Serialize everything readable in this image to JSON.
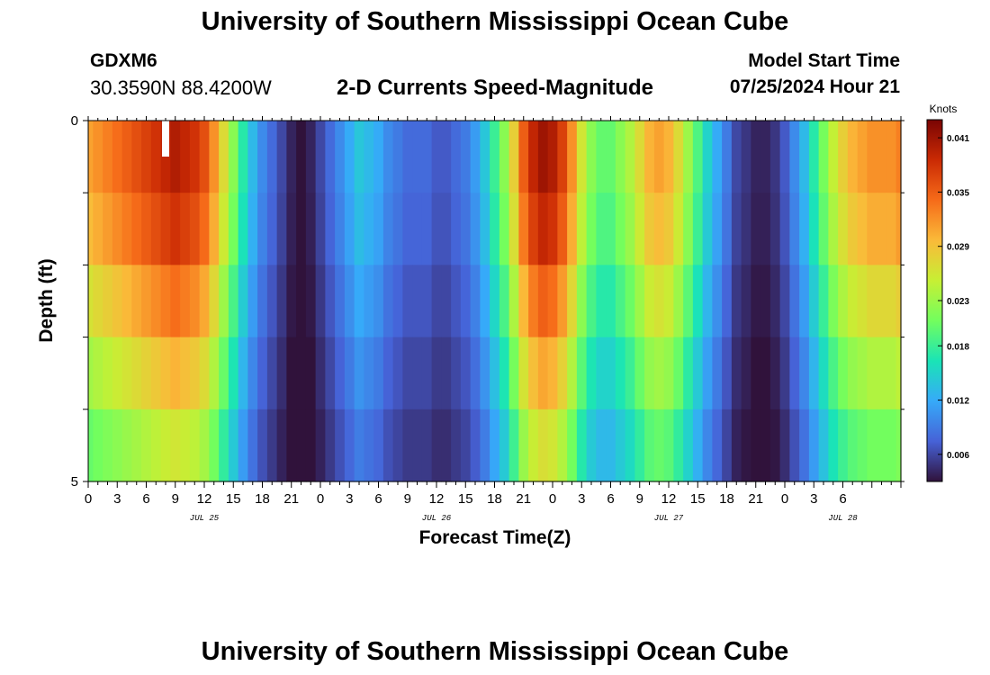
{
  "header": {
    "title": "University of Southern Mississippi Ocean Cube",
    "station_id": "GDXM6",
    "station_coords": "30.3590N  88.4200W",
    "product_title": "2-D Currents Speed-Magnitude",
    "model_start_label": "Model Start Time",
    "model_start_value": "07/25/2024 Hour 21"
  },
  "footer": {
    "title": "University of Southern Mississippi Ocean Cube"
  },
  "chart_data": {
    "type": "heatmap",
    "title": "2-D Currents Speed-Magnitude",
    "xlabel": "Forecast Time(Z)",
    "ylabel": "Depth (ft)",
    "x_hours": [
      0,
      84
    ],
    "x_step_hours": 1,
    "x_tick_labels": [
      "0",
      "3",
      "6",
      "9",
      "12",
      "15",
      "18",
      "21",
      "0",
      "3",
      "6",
      "9",
      "12",
      "15",
      "18",
      "21",
      "0",
      "3",
      "6",
      "9",
      "12",
      "15",
      "18",
      "21",
      "0",
      "3",
      "6"
    ],
    "date_labels": [
      {
        "label": "JUL 25",
        "hour": 12
      },
      {
        "label": "JUL 26",
        "hour": 36
      },
      {
        "label": "JUL 27",
        "hour": 60
      },
      {
        "label": "JUL 28",
        "hour": 78
      }
    ],
    "y_tick_labels": [
      "0",
      "5"
    ],
    "ylim": [
      0,
      5
    ],
    "depth_layers": 5,
    "colorbar": {
      "label": "Knots",
      "min": 0.003,
      "max": 0.043,
      "ticks": [
        "0.041",
        "0.035",
        "0.029",
        "0.023",
        "0.018",
        "0.012",
        "0.006"
      ],
      "tick_values": [
        0.041,
        0.035,
        0.029,
        0.023,
        0.018,
        0.012,
        0.006
      ],
      "colors": [
        "#30123b",
        "#4662d7",
        "#36aaf9",
        "#1ae4b6",
        "#72fe5e",
        "#c7ef34",
        "#faba39",
        "#f66b19",
        "#ca2a04",
        "#7a0403"
      ]
    },
    "surface_speed_knots": [
      0.031,
      0.032,
      0.033,
      0.034,
      0.035,
      0.036,
      0.037,
      0.038,
      0.039,
      0.04,
      0.039,
      0.038,
      0.036,
      0.032,
      0.027,
      0.022,
      0.017,
      0.013,
      0.01,
      0.008,
      0.006,
      0.004,
      0.003,
      0.004,
      0.006,
      0.008,
      0.01,
      0.012,
      0.014,
      0.013,
      0.012,
      0.01,
      0.009,
      0.008,
      0.008,
      0.008,
      0.007,
      0.007,
      0.008,
      0.009,
      0.011,
      0.014,
      0.018,
      0.022,
      0.028,
      0.035,
      0.039,
      0.041,
      0.04,
      0.037,
      0.032,
      0.026,
      0.022,
      0.02,
      0.02,
      0.022,
      0.024,
      0.027,
      0.03,
      0.031,
      0.03,
      0.027,
      0.023,
      0.019,
      0.015,
      0.012,
      0.009,
      0.006,
      0.005,
      0.004,
      0.004,
      0.005,
      0.007,
      0.01,
      0.013,
      0.017,
      0.021,
      0.025,
      0.028,
      0.03,
      0.031,
      0.032,
      0.032,
      0.032,
      0.033
    ],
    "depth_factors": [
      1.0,
      0.95,
      0.85,
      0.75,
      0.65
    ],
    "missing_value_marker": {
      "hour": 8,
      "depth_layer": 0,
      "color": "#ffffff"
    }
  }
}
